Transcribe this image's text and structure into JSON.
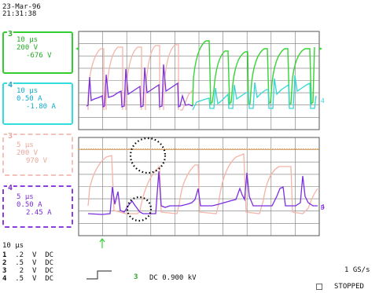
{
  "header": {
    "date": "23-Mar-96",
    "time": "21:31:38"
  },
  "channels": {
    "top_ch3": {
      "num": "3",
      "timebase": "10 µs",
      "volts": "200 V",
      "offset": "-676 V",
      "color": "#33cc33"
    },
    "top_ch4": {
      "num": "4",
      "timebase": "10 µs",
      "amps": "0.50 A",
      "offset": "-1.80 A",
      "color": "#33dddd"
    },
    "bot_ch3": {
      "num": "3",
      "timebase": "5 µs",
      "volts": "200 V",
      "offset": "970 V",
      "color": "#f5c2bb"
    },
    "bot_ch4": {
      "num": "4",
      "timebase": "5 µs",
      "amps": "0.50 A",
      "offset": "2.45 A",
      "color": "#8a3ee0"
    }
  },
  "timebase_main": "10 µs",
  "settings_rows": [
    {
      "ch": "1",
      "v": ".2",
      "u": "V",
      "c": "DC"
    },
    {
      "ch": "2",
      "v": ".5",
      "u": "V",
      "c": "DC"
    },
    {
      "ch": "3",
      "v": "2",
      "u": "V",
      "c": "DC"
    },
    {
      "ch": "4",
      "v": ".5",
      "u": "V",
      "c": "DC"
    }
  ],
  "trigger": {
    "source": "3",
    "text": "DC 0.900 kV"
  },
  "sample_rate": "1 GS/s",
  "run_status": "STOPPED",
  "colors": {
    "pink": "#f5b4a8",
    "purple": "#7b2fe0",
    "green": "#34d534",
    "cyan": "#35d6d6",
    "orange": "#e8b070"
  }
}
